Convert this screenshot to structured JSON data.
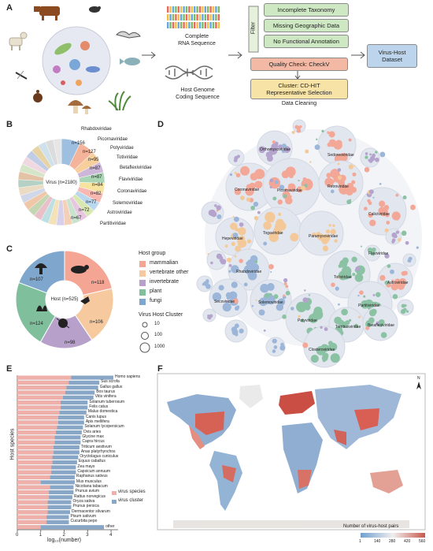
{
  "panels": {
    "a": "A",
    "b": "B",
    "c": "C",
    "d": "D",
    "e": "E",
    "f": "F"
  },
  "panel_a": {
    "rna_label": "Complete\nRNA Sequence",
    "host_label": "Host Genome\nCoding Sequence",
    "filter": "Filter",
    "filters": [
      "Incomplete Taxonomy",
      "Missing Geographic Data",
      "No Functional Annotation"
    ],
    "quality": "Quality Check: CheckV",
    "cluster": "Cluster: CD-HIT\nRepresentative Selection",
    "cleaning": "Data Cleaning",
    "dataset": "Virus-Host\nDataset",
    "colors": {
      "green": "#cfe8c4",
      "orange": "#f4b9a4",
      "yellow": "#f7e3a6",
      "blue": "#bcd4ec"
    }
  },
  "panel_b": {
    "center": "Virus (n=2180)",
    "families": [
      {
        "name": "Rhabdoviridae",
        "n": "n=156",
        "value": 156,
        "color": "#9fbfe0"
      },
      {
        "name": "Picornaviridae",
        "n": "n=127",
        "value": 127,
        "color": "#f4b49b"
      },
      {
        "name": "Potyviridae",
        "n": "n=95",
        "value": 95,
        "color": "#f6cf9c"
      },
      {
        "name": "Totiviridae",
        "n": "n=87",
        "value": 87,
        "color": "#cdb7d9"
      },
      {
        "name": "Betaflexiviridae",
        "n": "n=87",
        "value": 87,
        "color": "#a8d5b4"
      },
      {
        "name": "Flaviviridae",
        "n": "n=84",
        "value": 84,
        "color": "#f7e29f"
      },
      {
        "name": "Coronaviridae",
        "n": "n=82",
        "value": 82,
        "color": "#f6b8b1"
      },
      {
        "name": "Solemoviridae",
        "n": "n=77",
        "value": 77,
        "color": "#b9d7ee"
      },
      {
        "name": "Astroviridae",
        "n": "n=72",
        "value": 72,
        "color": "#d8e8b0"
      },
      {
        "name": "Partitiviridae",
        "n": "n=67",
        "value": 67,
        "color": "#e7c6e0"
      }
    ],
    "others_colors": [
      "#c9e3cf",
      "#f4d0b7",
      "#d7d0ea",
      "#f3e2b8",
      "#bfe0e3",
      "#e9c0c9",
      "#c4d6b2",
      "#f1c7a9",
      "#cfd7e8",
      "#eadbc2",
      "#b5d0c4",
      "#e3c2a6",
      "#d5e5c7",
      "#f0d8e0",
      "#c0cde4",
      "#e8d3a5",
      "#cfe1ea",
      "#dcdcdc",
      "#e6e6e6"
    ]
  },
  "panel_c": {
    "center": "Host (n=525)",
    "legend_title": "Host group",
    "groups": [
      {
        "name": "mammalian",
        "n": "n=118",
        "value": 118,
        "color": "#f4a593"
      },
      {
        "name": "vertebrate other",
        "n": "n=106",
        "value": 106,
        "color": "#f6c99e"
      },
      {
        "name": "invertebrate",
        "n": "n=98",
        "value": 98,
        "color": "#b7a1cb"
      },
      {
        "name": "plant",
        "n": "n=124",
        "value": 124,
        "color": "#7fbf9c"
      },
      {
        "name": "fungi",
        "n": "n=107",
        "value": 107,
        "color": "#7fa6cd"
      }
    ],
    "size_title": "Virus Host Cluster",
    "sizes": [
      "10",
      "100",
      "1000"
    ]
  },
  "panel_d": {
    "labels": [
      "Orthomyxoviridae",
      "Sedoreoviridae",
      "Coronaviridae",
      "Picornaviridae",
      "Retroviridae",
      "Caliciviridae",
      "Hepeviridae",
      "Togaviridae",
      "Paramyxoviridae",
      "Flaviviridae",
      "Astroviridae",
      "Rhabdoviridae",
      "Secoviridae",
      "Solemoviridae",
      "Totiviridae",
      "Partitiviridae",
      "Potyviridae",
      "Tombusviridae",
      "Betaflexiviridae",
      "Closteroviridae"
    ]
  },
  "panel_e": {
    "ylabel": "Host species",
    "xlabel": "log₁₀(number)",
    "xticks": [
      "0",
      "1",
      "2",
      "3",
      "4"
    ],
    "legend": [
      "virus species",
      "virus cluster"
    ],
    "colors": {
      "species": "#eeb0a8",
      "cluster": "#88a6c6"
    }
  },
  "panel_f": {
    "legend_title": "Number of virus-host pairs",
    "ticks": [
      "1",
      "140",
      "280",
      "420",
      "560"
    ],
    "north": "N"
  },
  "chart_data": {
    "type": "bar",
    "title": "",
    "xlabel": "log₁₀(number)",
    "ylabel": "Host species",
    "xlim": [
      0,
      4.3
    ],
    "categories": [
      "Homo sapiens",
      "Sus scrofa",
      "Gallus gallus",
      "Bos taurus",
      "Vitis vinifera",
      "Solanum tuberosum",
      "Felis catus",
      "Malus domestica",
      "Canis lupus",
      "Apis mellifera",
      "Solanum lycopersicum",
      "Ovis aries",
      "Glycine max",
      "Capra hircus",
      "Triticum aestivum",
      "Anas platyrhynchos",
      "Oryctolagus cuniculus",
      "Equus caballus",
      "Zea mays",
      "Capsicum annuum",
      "Raphanus sativus",
      "Mus musculus",
      "Nicotiana tabacum",
      "Prunus avium",
      "Rattus norvegicus",
      "Oryza sativa",
      "Prunus persica",
      "Dermacentor silvarum",
      "Pisum sativum",
      "Cucurbita pepo",
      "other"
    ],
    "series": [
      {
        "name": "virus species",
        "values": [
          2.3,
          2.2,
          2.1,
          2.05,
          1.95,
          1.85,
          1.85,
          1.8,
          1.75,
          1.75,
          1.7,
          1.65,
          1.6,
          1.6,
          1.55,
          1.55,
          1.5,
          1.5,
          1.45,
          1.45,
          1.4,
          1.0,
          1.4,
          1.35,
          1.35,
          1.3,
          1.3,
          1.3,
          1.25,
          1.25,
          1.0
        ]
      },
      {
        "name": "virus cluster",
        "values": [
          4.1,
          3.5,
          3.45,
          3.3,
          3.25,
          3.0,
          3.0,
          2.95,
          2.85,
          2.85,
          2.8,
          2.75,
          2.7,
          2.7,
          2.65,
          2.65,
          2.6,
          2.55,
          2.5,
          2.5,
          2.45,
          2.45,
          2.4,
          2.4,
          2.35,
          2.3,
          2.3,
          2.25,
          2.2,
          2.2,
          3.7
        ]
      }
    ]
  }
}
